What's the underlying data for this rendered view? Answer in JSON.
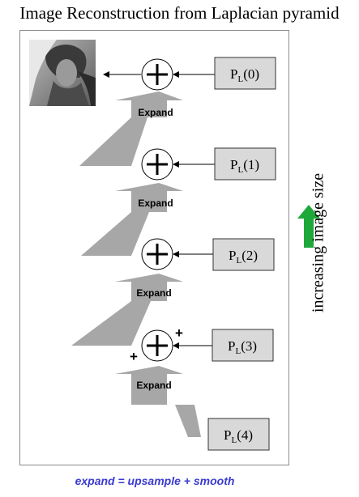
{
  "title": "Image Reconstruction from Laplacian pyramid",
  "side_label": "increasing image size",
  "caption": "expand = upsample + smooth",
  "expand_label": "Expand",
  "plus_sign": "+",
  "levels": [
    {
      "base": "P",
      "sub": "L",
      "arg": "(0)"
    },
    {
      "base": "P",
      "sub": "L",
      "arg": "(1)"
    },
    {
      "base": "P",
      "sub": "L",
      "arg": "(2)"
    },
    {
      "base": "P",
      "sub": "L",
      "arg": "(3)"
    },
    {
      "base": "P",
      "sub": "L",
      "arg": "(4)"
    }
  ],
  "colors": {
    "arrow_gray": "#a7a7a7",
    "box_gray": "#d9d9d9",
    "up_arrow": "#1fa83a",
    "caption": "#3a3ad0"
  },
  "icons": {
    "reconstructed_image": "lena-photo-icon",
    "up_arrow": "green-up-arrow-icon"
  }
}
